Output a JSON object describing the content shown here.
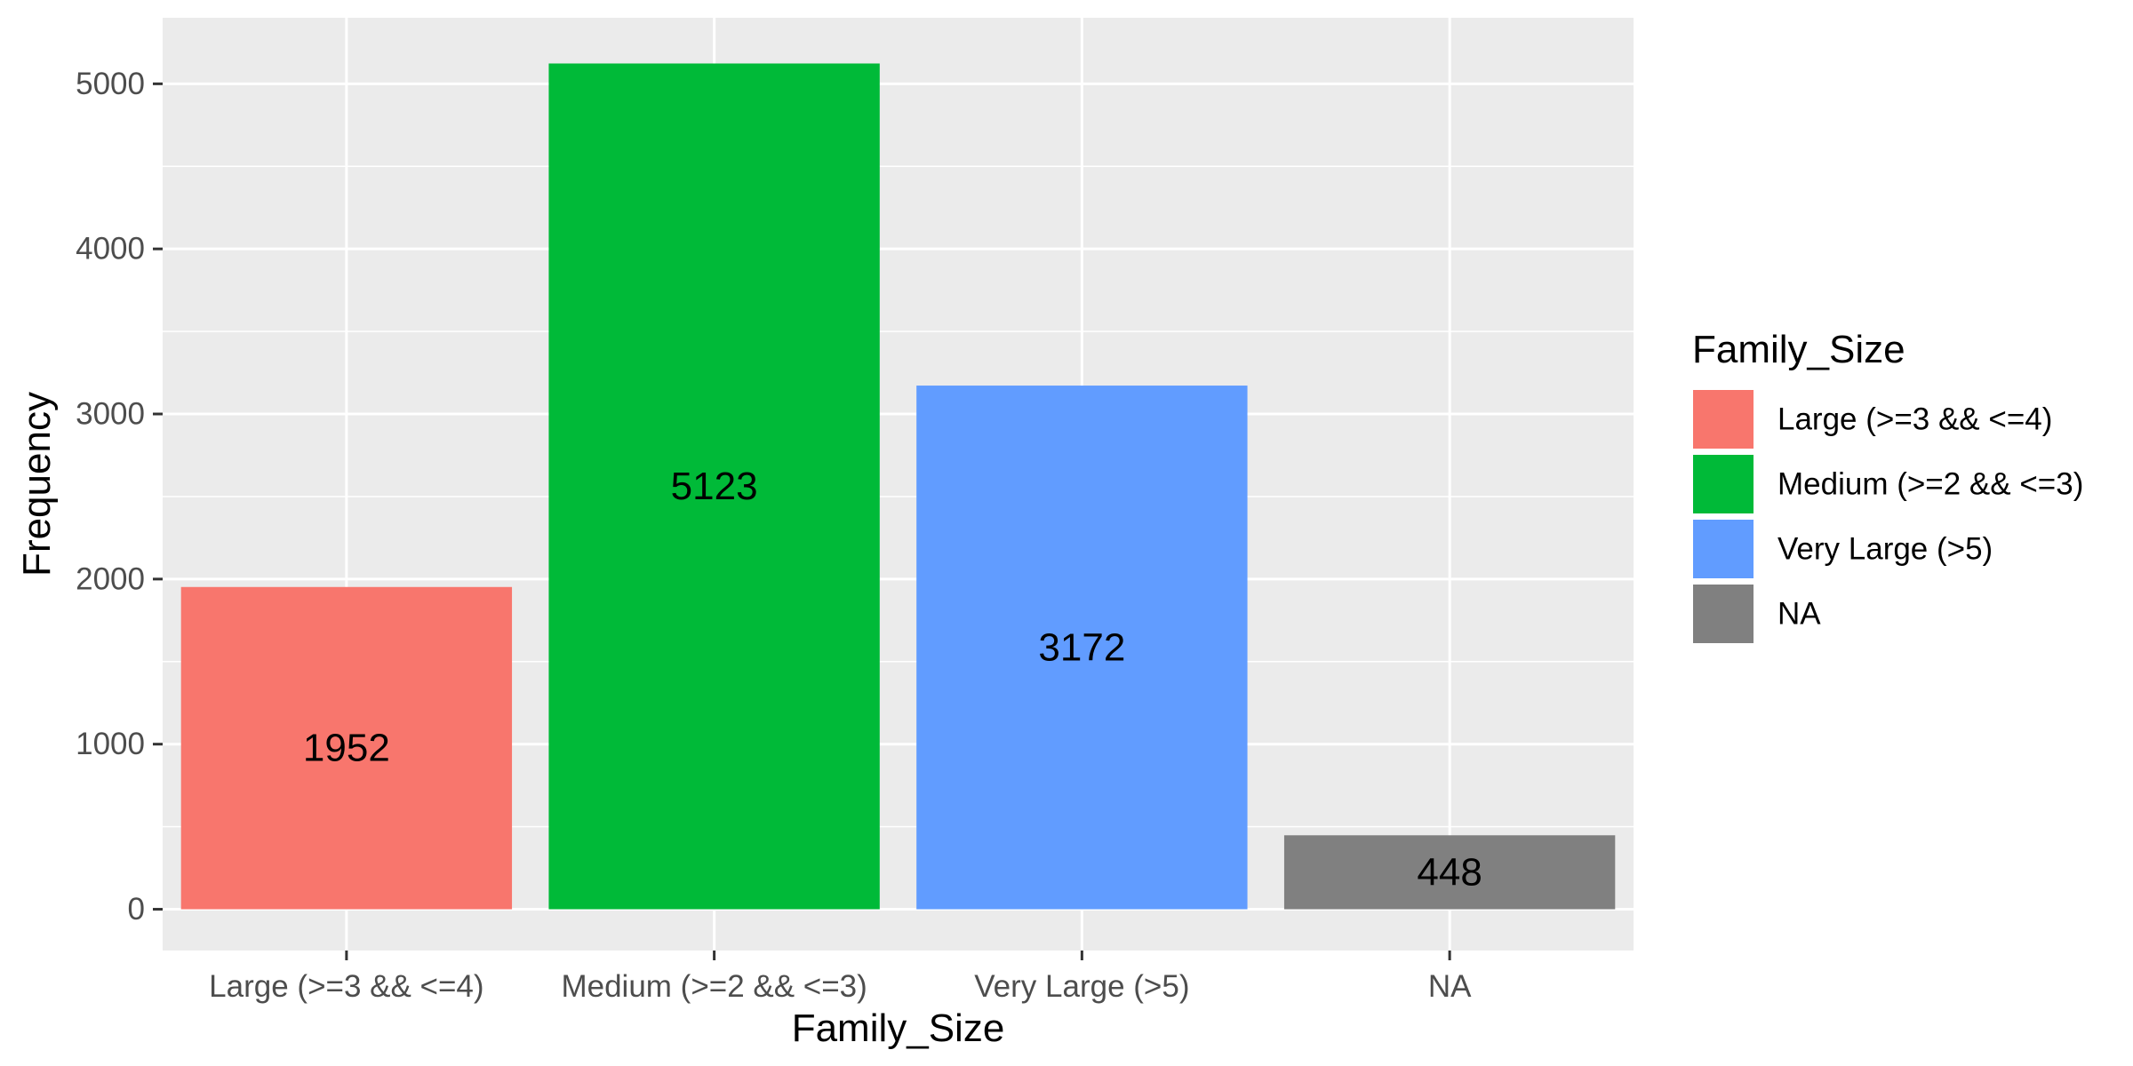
{
  "chart_data": {
    "type": "bar",
    "title": "",
    "xlabel": "Family_Size",
    "ylabel": "Frequency",
    "categories": [
      "Large (>=3 && <=4)",
      "Medium (>=2 && <=3)",
      "Very Large (>5)",
      "NA"
    ],
    "values": [
      1952,
      5123,
      3172,
      448
    ],
    "value_labels": [
      "1952",
      "5123",
      "3172",
      "448"
    ],
    "colors": [
      "#F8766D",
      "#00BA38",
      "#619CFF",
      "#808080"
    ],
    "ylim": [
      -250,
      5400
    ],
    "y_ticks": [
      0,
      1000,
      2000,
      3000,
      4000,
      5000
    ],
    "y_tick_labels": [
      "0",
      "1000",
      "2000",
      "3000",
      "4000",
      "5000"
    ],
    "grid": true,
    "panel_background": "#EBEBEB",
    "grid_color": "#FFFFFF",
    "legend": {
      "title": "Family_Size",
      "position": "right",
      "entries": [
        "Large (>=3 && <=4)",
        "Medium (>=2 && <=3)",
        "Very Large (>5)",
        "NA"
      ]
    }
  }
}
